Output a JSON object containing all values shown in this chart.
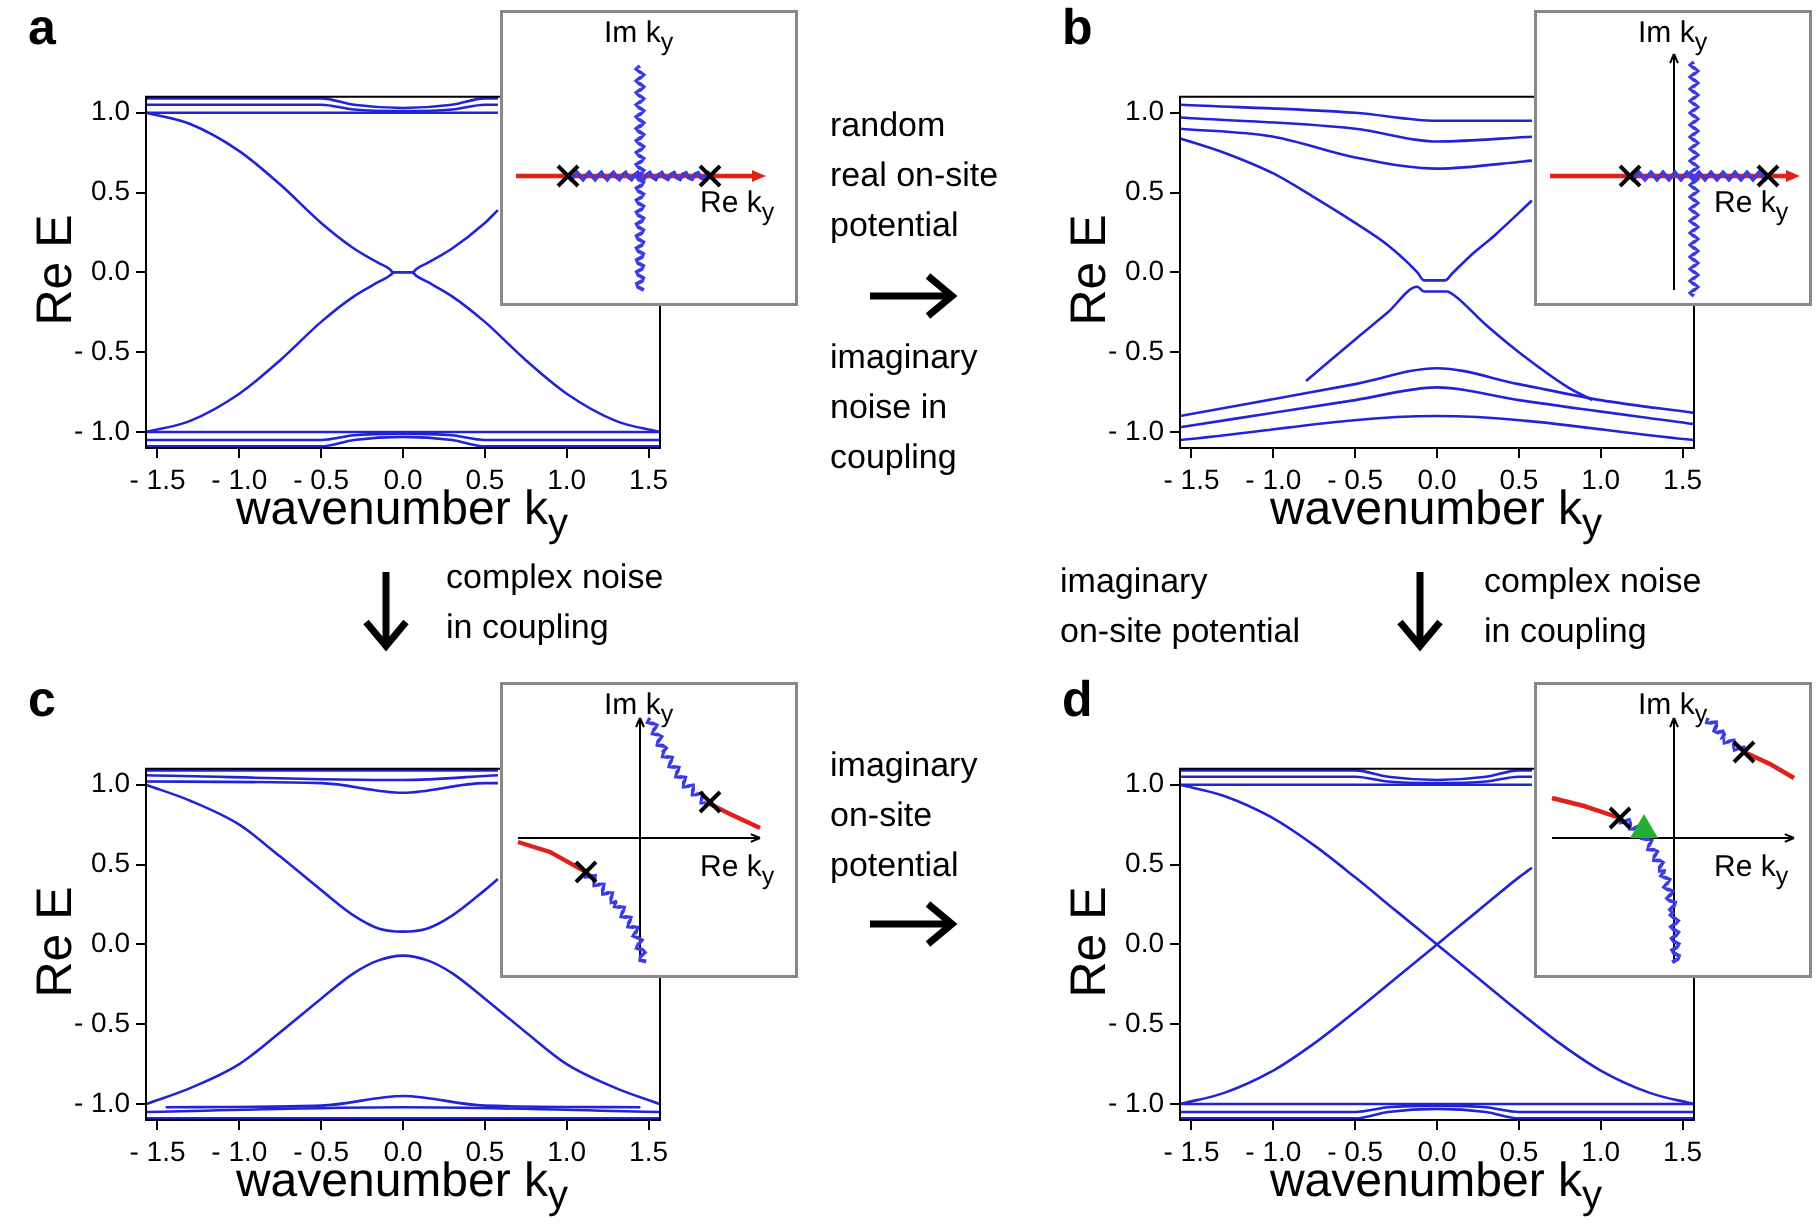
{
  "chart_data": [
    {
      "type": "line",
      "title": "a",
      "xlabel": "wavenumber k$_{y}$",
      "ylabel": "Re E",
      "xlim": [
        -1.57,
        1.57
      ],
      "ylim": [
        -1.1,
        1.1
      ],
      "xticks": [
        {
          "value": -1.5,
          "label": "- 1.5"
        },
        {
          "value": -1,
          "label": "- 1.0"
        },
        {
          "value": -0.5,
          "label": "- 0.5"
        },
        {
          "value": 0,
          "label": "0.0"
        },
        {
          "value": 0.5,
          "label": "0.5"
        },
        {
          "value": 1,
          "label": "1.0"
        },
        {
          "value": 1.5,
          "label": "1.5"
        }
      ],
      "yticks": [
        {
          "value": -1,
          "label": "- 1.0"
        },
        {
          "value": -0.5,
          "label": "- 0.5"
        },
        {
          "value": 0,
          "label": "0.0"
        },
        {
          "value": 0.5,
          "label": "0.5"
        },
        {
          "value": 1,
          "label": "1.0"
        }
      ],
      "grid": false,
      "marker": "none",
      "line_style": "solid",
      "annotations": [
        "Im k$_{y}$",
        "Re k$_{y}$",
        "random\nreal on-site\npotential",
        "imaginary\nnoise in\ncoupling",
        "complex noise\nin coupling"
      ],
      "series": [
        {
          "color": "#2222d8",
          "x": [
            -1.57,
            -1.3,
            -1.0,
            -0.75,
            -0.5,
            -0.3,
            -0.15,
            -0.08,
            -0.06,
            0.06,
            0.08,
            0.15,
            0.3,
            0.5,
            0.58
          ],
          "values": [
            1.0,
            0.93,
            0.76,
            0.55,
            0.31,
            0.15,
            0.06,
            0.02,
            0,
            0,
            0.02,
            0.06,
            0.15,
            0.31,
            0.39
          ]
        },
        {
          "color": "#2222d8",
          "x": [
            -1.57,
            -1.3,
            -1.0,
            -0.75,
            -0.5,
            -0.3,
            -0.15,
            -0.08,
            -0.06
          ],
          "values": [
            -1.0,
            -0.93,
            -0.76,
            -0.55,
            -0.31,
            -0.15,
            -0.06,
            -0.02,
            0
          ]
        },
        {
          "color": "#2222d8",
          "x": [
            0.06,
            0.08,
            0.15,
            0.3,
            0.5,
            0.75,
            1.0,
            1.3,
            1.57
          ],
          "values": [
            0,
            -0.02,
            -0.06,
            -0.15,
            -0.31,
            -0.55,
            -0.76,
            -0.93,
            -1.0
          ]
        },
        {
          "color": "#2222d8",
          "x": [
            -1.57,
            0,
            0.58
          ],
          "values": [
            1.0,
            1.0,
            1.0
          ]
        },
        {
          "color": "#2222d8",
          "x": [
            -1.57,
            -0.5,
            -0.3,
            0,
            0.3,
            0.5,
            0.58
          ],
          "values": [
            1.05,
            1.05,
            1.02,
            1.01,
            1.02,
            1.05,
            1.05
          ]
        },
        {
          "color": "#2222d8",
          "x": [
            -1.57,
            -0.5,
            -0.3,
            0,
            0.3,
            0.5,
            0.58
          ],
          "values": [
            1.09,
            1.09,
            1.05,
            1.03,
            1.05,
            1.09,
            1.09
          ]
        },
        {
          "color": "#2222d8",
          "x": [
            -1.57,
            0,
            1.57
          ],
          "values": [
            -1.0,
            -1.0,
            -1.0
          ]
        },
        {
          "color": "#2222d8",
          "x": [
            -1.57,
            -0.5,
            -0.3,
            0,
            0.3,
            0.5,
            1.57
          ],
          "values": [
            -1.05,
            -1.05,
            -1.02,
            -1.01,
            -1.02,
            -1.05,
            -1.05
          ]
        },
        {
          "color": "#2222d8",
          "x": [
            -1.57,
            -0.5,
            -0.3,
            0,
            0.3,
            0.5,
            1.57
          ],
          "values": [
            -1.09,
            -1.09,
            -1.05,
            -1.03,
            -1.05,
            -1.09,
            -1.09
          ]
        }
      ]
    },
    {
      "type": "line",
      "title": "b",
      "xlabel": "wavenumber k$_{y}$",
      "ylabel": "Re E",
      "xlim": [
        -1.57,
        1.57
      ],
      "ylim": [
        -1.1,
        1.1
      ],
      "xticks": [
        {
          "value": -1.5,
          "label": "- 1.5"
        },
        {
          "value": -1,
          "label": "- 1.0"
        },
        {
          "value": -0.5,
          "label": "- 0.5"
        },
        {
          "value": 0,
          "label": "0.0"
        },
        {
          "value": 0.5,
          "label": "0.5"
        },
        {
          "value": 1,
          "label": "1.0"
        },
        {
          "value": 1.5,
          "label": "1.5"
        }
      ],
      "yticks": [
        {
          "value": -1,
          "label": "- 1.0"
        },
        {
          "value": -0.5,
          "label": "- 0.5"
        },
        {
          "value": 0,
          "label": "0.0"
        },
        {
          "value": 0.5,
          "label": "0.5"
        },
        {
          "value": 1,
          "label": "1.0"
        }
      ],
      "grid": false,
      "marker": "none",
      "line_style": "solid",
      "annotations": [
        "Im k$_{y}$",
        "Re k$_{y}$",
        "imaginary\non-site potential",
        "complex noise\nin coupling"
      ],
      "series": [
        {
          "color": "#2222d8",
          "x": [
            -1.57,
            -1.3,
            -1.0,
            -0.75,
            -0.5,
            -0.3,
            -0.12,
            -0.08,
            0.05,
            0.09,
            0.2,
            0.35,
            0.58
          ],
          "values": [
            0.84,
            0.75,
            0.62,
            0.47,
            0.31,
            0.17,
            0.0,
            -0.05,
            -0.05,
            -0.01,
            0.1,
            0.23,
            0.45
          ]
        },
        {
          "color": "#2222d8",
          "x": [
            -0.8,
            -0.5,
            -0.3,
            -0.12,
            -0.08,
            0.06,
            0.1,
            0.3,
            0.5,
            0.8,
            0.95
          ],
          "values": [
            -0.68,
            -0.42,
            -0.25,
            -0.09,
            -0.12,
            -0.12,
            -0.14,
            -0.33,
            -0.5,
            -0.72,
            -0.8
          ]
        },
        {
          "color": "#2222d8",
          "x": [
            -1.57,
            -0.5,
            0,
            0.58
          ],
          "values": [
            1.05,
            1.0,
            0.95,
            0.95
          ]
        },
        {
          "color": "#2222d8",
          "x": [
            -1.57,
            -0.5,
            0,
            0.58
          ],
          "values": [
            0.97,
            0.9,
            0.82,
            0.85
          ]
        },
        {
          "color": "#2222d8",
          "x": [
            -1.57,
            -1.0,
            -0.5,
            0,
            0.58
          ],
          "values": [
            0.9,
            0.85,
            0.72,
            0.65,
            0.7
          ]
        },
        {
          "color": "#2222d8",
          "x": [
            -1.57,
            -0.5,
            0,
            0.5,
            1.0,
            1.57
          ],
          "values": [
            -0.9,
            -0.7,
            -0.6,
            -0.7,
            -0.8,
            -0.88
          ]
        },
        {
          "color": "#2222d8",
          "x": [
            -1.57,
            -0.5,
            0,
            0.5,
            1.57
          ],
          "values": [
            -0.97,
            -0.8,
            -0.72,
            -0.8,
            -0.95
          ]
        },
        {
          "color": "#2222d8",
          "x": [
            -1.57,
            0,
            1.57
          ],
          "values": [
            -1.05,
            -0.9,
            -1.05
          ]
        }
      ]
    },
    {
      "type": "line",
      "title": "c",
      "xlabel": "wavenumber k$_{y}$",
      "ylabel": "Re E",
      "xlim": [
        -1.57,
        1.57
      ],
      "ylim": [
        -1.1,
        1.1
      ],
      "xticks": [
        {
          "value": -1.5,
          "label": "- 1.5"
        },
        {
          "value": -1,
          "label": "- 1.0"
        },
        {
          "value": -0.5,
          "label": "- 0.5"
        },
        {
          "value": 0,
          "label": "0.0"
        },
        {
          "value": 0.5,
          "label": "0.5"
        },
        {
          "value": 1,
          "label": "1.0"
        },
        {
          "value": 1.5,
          "label": "1.5"
        }
      ],
      "yticks": [
        {
          "value": -1,
          "label": "- 1.0"
        },
        {
          "value": -0.5,
          "label": "- 0.5"
        },
        {
          "value": 0,
          "label": "0.0"
        },
        {
          "value": 0.5,
          "label": "0.5"
        },
        {
          "value": 1,
          "label": "1.0"
        }
      ],
      "grid": false,
      "marker": "none",
      "line_style": "solid",
      "annotations": [
        "Im k$_{y}$",
        "Re k$_{y}$",
        "imaginary\non-site\npotential"
      ],
      "series": [
        {
          "color": "#2222d8",
          "x": [
            -1.57,
            -1.3,
            -1.0,
            -0.75,
            -0.5,
            -0.3,
            -0.15,
            0,
            0.15,
            0.3,
            0.5,
            0.58
          ],
          "values": [
            1.0,
            0.9,
            0.75,
            0.55,
            0.34,
            0.18,
            0.1,
            0.08,
            0.1,
            0.18,
            0.34,
            0.41
          ]
        },
        {
          "color": "#2222d8",
          "x": [
            -1.57,
            -1.3,
            -1.0,
            -0.75,
            -0.5,
            -0.3,
            -0.15,
            0,
            0.15,
            0.3,
            0.5,
            0.75,
            1.0,
            1.3,
            1.57
          ],
          "values": [
            -1.0,
            -0.9,
            -0.75,
            -0.55,
            -0.34,
            -0.18,
            -0.1,
            -0.07,
            -0.1,
            -0.18,
            -0.34,
            -0.55,
            -0.75,
            -0.9,
            -1.0
          ]
        },
        {
          "color": "#2222d8",
          "x": [
            -1.57,
            -0.5,
            0,
            0.5,
            0.58
          ],
          "values": [
            1.02,
            1.01,
            0.95,
            1.01,
            1.01
          ]
        },
        {
          "color": "#2222d8",
          "x": [
            -1.57,
            0,
            0.58
          ],
          "values": [
            1.06,
            1.03,
            1.06
          ]
        },
        {
          "color": "#2222d8",
          "x": [
            -1.57,
            0.58
          ],
          "values": [
            1.09,
            1.09
          ]
        },
        {
          "color": "#2222d8",
          "x": [
            -1.45,
            -0.5,
            0,
            0.5,
            1.45
          ],
          "values": [
            -1.02,
            -1.01,
            -0.95,
            -1.01,
            -1.02
          ]
        },
        {
          "color": "#2222d8",
          "x": [
            -1.57,
            0,
            1.57
          ],
          "values": [
            -1.05,
            -1.02,
            -1.05
          ]
        },
        {
          "color": "#2222d8",
          "x": [
            -1.57,
            1.57
          ],
          "values": [
            -1.09,
            -1.09
          ]
        }
      ]
    },
    {
      "type": "line",
      "title": "d",
      "xlabel": "wavenumber k$_{y}$",
      "ylabel": "Re E",
      "xlim": [
        -1.57,
        1.57
      ],
      "ylim": [
        -1.1,
        1.1
      ],
      "xticks": [
        {
          "value": -1.5,
          "label": "- 1.5"
        },
        {
          "value": -1,
          "label": "- 1.0"
        },
        {
          "value": -0.5,
          "label": "- 0.5"
        },
        {
          "value": 0,
          "label": "0.0"
        },
        {
          "value": 0.5,
          "label": "0.5"
        },
        {
          "value": 1,
          "label": "1.0"
        },
        {
          "value": 1.5,
          "label": "1.5"
        }
      ],
      "yticks": [
        {
          "value": -1,
          "label": "- 1.0"
        },
        {
          "value": -0.5,
          "label": "- 0.5"
        },
        {
          "value": 0,
          "label": "0.0"
        },
        {
          "value": 0.5,
          "label": "0.5"
        },
        {
          "value": 1,
          "label": "1.0"
        }
      ],
      "grid": false,
      "marker": "none",
      "line_style": "solid",
      "annotations": [
        "Im k$_{y}$",
        "Re k$_{y}$"
      ],
      "series": [
        {
          "color": "#2222d8",
          "x": [
            -1.57,
            -1.3,
            -1.0,
            -0.75,
            -0.5,
            -0.25,
            0,
            0.25,
            0.5,
            0.75,
            1.0,
            1.3,
            1.57
          ],
          "values": [
            1.0,
            0.93,
            0.79,
            0.62,
            0.42,
            0.21,
            0,
            -0.21,
            -0.42,
            -0.62,
            -0.79,
            -0.93,
            -1.0
          ]
        },
        {
          "color": "#2222d8",
          "x": [
            -1.57,
            -1.3,
            -1.0,
            -0.75,
            -0.5,
            -0.25,
            0,
            0.25,
            0.5,
            0.58
          ],
          "values": [
            -1.0,
            -0.93,
            -0.79,
            -0.62,
            -0.42,
            -0.21,
            0,
            0.21,
            0.42,
            0.48
          ]
        },
        {
          "color": "#2222d8",
          "x": [
            -1.57,
            0,
            0.58
          ],
          "values": [
            1.0,
            1.0,
            1.0
          ]
        },
        {
          "color": "#2222d8",
          "x": [
            -1.57,
            -0.5,
            -0.3,
            0,
            0.3,
            0.5,
            0.58
          ],
          "values": [
            1.05,
            1.05,
            1.02,
            1.01,
            1.02,
            1.05,
            1.05
          ]
        },
        {
          "color": "#2222d8",
          "x": [
            -1.57,
            -0.5,
            -0.3,
            0,
            0.3,
            0.5,
            0.58
          ],
          "values": [
            1.09,
            1.09,
            1.05,
            1.03,
            1.05,
            1.09,
            1.09
          ]
        },
        {
          "color": "#2222d8",
          "x": [
            -1.57,
            0,
            1.57
          ],
          "values": [
            -1.0,
            -1.0,
            -1.0
          ]
        },
        {
          "color": "#2222d8",
          "x": [
            -1.57,
            -0.5,
            -0.3,
            0,
            0.3,
            0.5,
            1.57
          ],
          "values": [
            -1.05,
            -1.05,
            -1.02,
            -1.01,
            -1.02,
            -1.05,
            -1.05
          ]
        },
        {
          "color": "#2222d8",
          "x": [
            -1.57,
            -0.5,
            -0.3,
            0,
            0.3,
            0.5,
            1.57
          ],
          "values": [
            -1.09,
            -1.09,
            -1.05,
            -1.03,
            -1.05,
            -1.09,
            -1.09
          ]
        }
      ]
    }
  ]
}
